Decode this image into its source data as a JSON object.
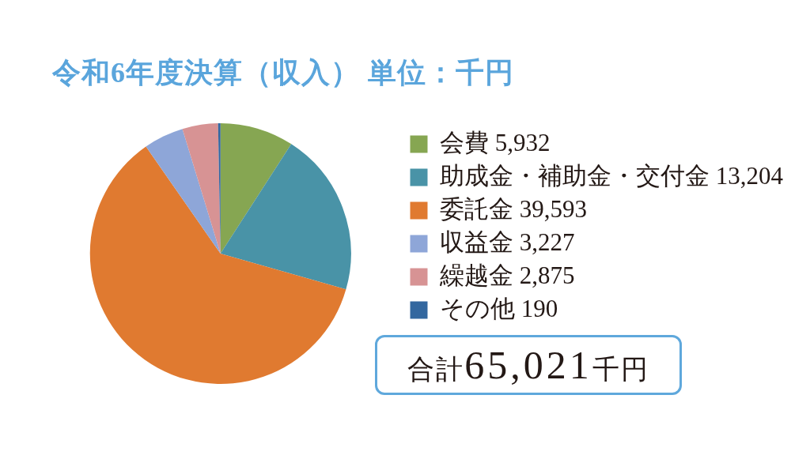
{
  "chart_data": {
    "type": "pie",
    "title": "令和6年度決算（収入） 単位：千円",
    "categories": [
      "会費",
      "助成金・補助金・交付金",
      "委託金",
      "収益金",
      "繰越金",
      "その他"
    ],
    "values": [
      5932,
      13204,
      39593,
      3227,
      2875,
      190
    ],
    "value_labels": [
      "5,932",
      "13,204",
      "39,593",
      "3,227",
      "2,875",
      "190"
    ],
    "colors": [
      "#86a652",
      "#4993a7",
      "#e07a30",
      "#8ea6d8",
      "#d79394",
      "#33679f"
    ],
    "legend": "right",
    "annotations": [
      "合計65,021千円"
    ]
  }
}
